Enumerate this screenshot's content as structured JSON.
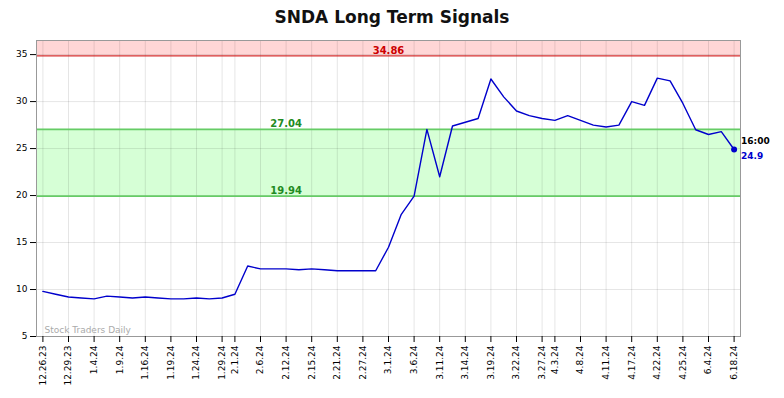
{
  "chart_data": {
    "type": "line",
    "title": "SNDA Long Term Signals",
    "categories": [
      "12.26.23",
      null,
      "12.29.23",
      null,
      "1.4.24",
      null,
      "1.9.24",
      null,
      "1.16.24",
      null,
      "1.19.24",
      null,
      "1.24.24",
      null,
      "1.29.24",
      "2.1.24",
      null,
      "2.6.24",
      null,
      "2.12.24",
      null,
      "2.15.24",
      null,
      "2.21.24",
      null,
      "2.27.24",
      null,
      "3.1.24",
      null,
      "3.6.24",
      null,
      "3.11.24",
      null,
      "3.14.24",
      null,
      "3.19.24",
      null,
      "3.22.24",
      null,
      "3.27.24",
      "4.3.24",
      null,
      "4.8.24",
      null,
      "4.11.24",
      null,
      "4.17.24",
      null,
      "4.22.24",
      null,
      "4.25.24",
      null,
      "6.4.24",
      null,
      "6.18.24"
    ],
    "values": [
      9.8,
      9.5,
      9.2,
      9.1,
      9.0,
      9.3,
      9.2,
      9.1,
      9.2,
      9.1,
      9.0,
      9.0,
      9.1,
      9.0,
      9.1,
      9.5,
      12.5,
      12.2,
      12.2,
      12.2,
      12.1,
      12.2,
      12.1,
      12.0,
      12.0,
      12.0,
      12.0,
      14.5,
      18.0,
      19.94,
      27.04,
      22.0,
      27.4,
      27.8,
      28.2,
      32.4,
      30.5,
      29.0,
      28.5,
      28.2,
      28.0,
      28.5,
      28.0,
      27.5,
      27.3,
      27.5,
      30.0,
      29.6,
      32.5,
      32.2,
      29.8,
      27.0,
      26.5,
      26.8,
      24.9
    ],
    "color": "#0000cc",
    "ylim": [
      5,
      36.5
    ],
    "yticks": [
      5,
      10,
      15,
      20,
      25,
      30,
      35
    ],
    "grid": true,
    "bands": [
      {
        "y1": 34.86,
        "y2": 36.5,
        "color": "#ffcccc"
      },
      {
        "y1": 19.94,
        "y2": 27.04,
        "color": "#ccffcc"
      }
    ],
    "hlines": [
      {
        "y": 34.86,
        "color": "#cc0000",
        "label_color": "#cc0000"
      },
      {
        "y": 27.04,
        "color": "#66cc66",
        "label_color": "#228B22"
      },
      {
        "y": 19.94,
        "color": "#66cc66",
        "label_color": "#228B22"
      }
    ],
    "end_label": "16:00",
    "end_value": 24.9,
    "watermark": "Stock Traders Daily"
  }
}
